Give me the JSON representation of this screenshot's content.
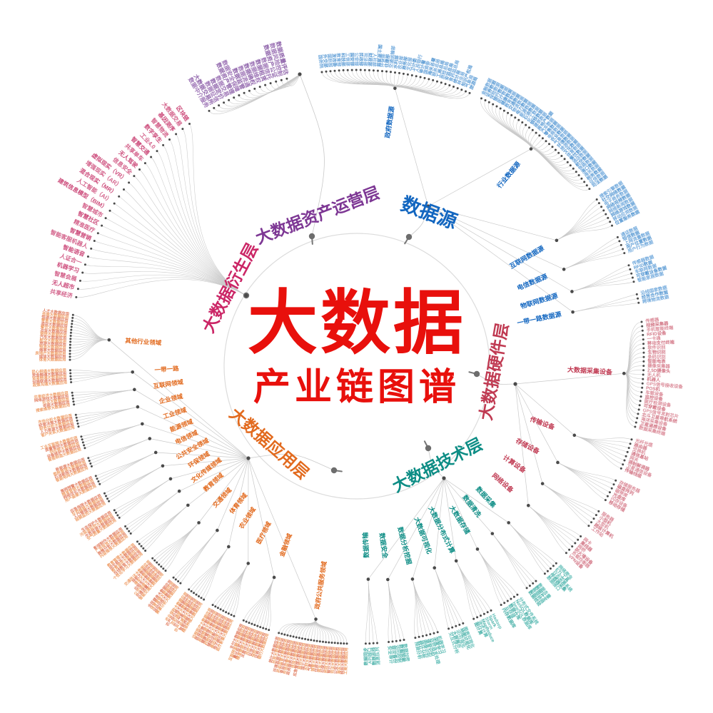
{
  "title": {
    "main": "大数据",
    "sub": "产业链图谱"
  },
  "colors": {
    "center_red": "#e8100c",
    "curve_gray": "#c9c9c9",
    "dot_gray": "#4a4a4a",
    "ring_gray": "#dcdcdc"
  },
  "branches": [
    {
      "id": "data-source",
      "label": "数据源",
      "color": "#1266c0",
      "leaf_colors": [
        "#74abdd",
        "#5b9bd4"
      ],
      "subs": [
        {
          "label": "政府数据源",
          "leaves": [
            "国务院",
            "外交部",
            "国防部",
            "发改委",
            "教育部",
            "科技部",
            "工信部",
            "国安部",
            "公安部",
            "民政部",
            "司法部",
            "财政部",
            "人社部",
            "国土资源部",
            "环保部",
            "住建部",
            "交通运输部",
            "水利部",
            "农业部",
            "商务部",
            "文化部",
            "卫计委",
            "人民银行",
            "审计署",
            "国资委",
            "海关总署",
            "税务总局",
            "工商总局",
            "质检总局",
            "安监总局",
            "食药监总局",
            "统计局",
            "林业局",
            "知识产权局",
            "气象局",
            "旅游局"
          ]
        },
        {
          "label": "行业数据源",
          "leaves": [
            "金融数据",
            "证券数据",
            "保险数据",
            "银行数据",
            "医疗数据",
            "健康数据",
            "教育数据",
            "交通数据",
            "物流数据",
            "电力数据",
            "能源数据",
            "石油数据",
            "化工数据",
            "钢铁数据",
            "建筑数据",
            "房地产数据",
            "汽车数据",
            "零售数据",
            "电商数据",
            "农业数据",
            "气象数据",
            "环境数据",
            "旅游数据",
            "文化数据",
            "体育数据",
            "餐饮数据",
            "酒店数据",
            "航空数据",
            "铁路数据",
            "港口数据",
            "海关数据",
            "税务数据",
            "征信数据",
            "司法数据"
          ]
        },
        {
          "label": "互联网数据源",
          "leaves": [
            "搜索引擎数据",
            "社交网络数据",
            "电子商务数据",
            "网络视频数据",
            "网络新闻数据",
            "网络游戏数据",
            "移动应用数据",
            "位置服务数据"
          ]
        },
        {
          "label": "电信数据源",
          "leaves": [
            "通话数据",
            "短信数据",
            "上网流量数据",
            "用户位置数据",
            "用户行为数据"
          ]
        },
        {
          "label": "物联网数据源",
          "leaves": [
            "传感器数据",
            "RFID数据",
            "车联网数据",
            "可穿戴设备数据",
            "智能家居数据"
          ]
        },
        {
          "label": "一带一路数据源",
          "leaves": [
            "沿线国家数据",
            "经贸合作数据",
            "跨境物流数据"
          ]
        }
      ]
    },
    {
      "id": "hardware",
      "label": "大数据硬件层",
      "color": "#c03a52",
      "leaf_colors": [
        "#dc8e9b",
        "#d47a89"
      ],
      "subs": [
        {
          "label": "大数据采集设备",
          "leaves": [
            "传感器",
            "视频采集器",
            "手机智能终端",
            "RFID设备",
            "一卡通",
            "移动支付终端",
            "软件识别",
            "生物识别",
            "条码识别",
            "智能电表",
            "摄像采集器",
            "2.5D摄像头",
            "无人机",
            "机器人",
            "GPS信号接收设备",
            "POS机",
            "车载设备",
            "监控设备",
            "医疗检测设备",
            "可穿戴设备",
            "GPS信号发射芯片",
            "北斗卫星导航系统",
            "海洋采集设备",
            "卫星遥感设备",
            "数据采集终端"
          ]
        },
        {
          "label": "传输设备",
          "leaves": [
            "光纤光缆",
            "路由器",
            "交换机",
            "通信基站",
            "网关",
            "调制解调器",
            "卫星通信设备",
            "传输线缆"
          ]
        },
        {
          "label": "存储设备",
          "leaves": [
            "存储服务器",
            "磁盘阵列",
            "磁带库",
            "光盘库",
            "闪存设备",
            "移动存储"
          ]
        },
        {
          "label": "计算设备",
          "leaves": [
            "服务器",
            "小型机",
            "大型机",
            "超级计算机",
            "工作站"
          ]
        },
        {
          "label": "网络设备",
          "leaves": [
            "网卡",
            "集线器",
            "网桥",
            "防火墙设备",
            "负载均衡器",
            "VPN设备"
          ]
        }
      ]
    },
    {
      "id": "technology",
      "label": "大数据技术层",
      "color": "#0d8d85",
      "leaf_colors": [
        "#63bfb8",
        "#4fb3ab"
      ],
      "subs": [
        {
          "label": "数据采集",
          "leaves": [
            "网络爬虫",
            "ETL工具",
            "日志采集系统",
            "传感器采集",
            "数据接口"
          ]
        },
        {
          "label": "数据清洗",
          "leaves": [
            "数据去重",
            "数据补全",
            "数据转换",
            "数据校验"
          ]
        },
        {
          "label": "大数据存储",
          "leaves": [
            "分布式文件系统",
            "NoSQL数据库",
            "NewSQL数据库",
            "数据仓库",
            "云存储",
            "内存数据库"
          ]
        },
        {
          "label": "大数据分布式计算",
          "leaves": [
            "Hadoop",
            "Spark",
            "Storm",
            "MapReduce",
            "流式计算",
            "图计算"
          ]
        },
        {
          "label": "大数据可视化",
          "leaves": [
            "图表可视化",
            "地图可视化",
            "3D可视化",
            "大屏展示",
            "交互式分析"
          ]
        },
        {
          "label": "数据分析挖掘",
          "leaves": [
            "机器学习",
            "深度学习",
            "自然语言处理",
            "语音识别",
            "图像识别",
            "统计分析",
            "预测分析"
          ]
        },
        {
          "label": "数据安全",
          "leaves": [
            "数据加密",
            "数据脱敏",
            "访问控制",
            "容灾备份",
            "安全审计"
          ]
        },
        {
          "label": "数据传输",
          "leaves": [
            "消息队列",
            "数据总线",
            "API接口",
            "数据同步"
          ]
        }
      ]
    },
    {
      "id": "application",
      "label": "大数据应用层",
      "color": "#e26a1e",
      "leaf_colors": [
        "#efa06b",
        "#e28266"
      ],
      "subs": [
        {
          "label": "政府公共服务领域",
          "leaves": [
            "工商大数据应用",
            "税务大数据应用",
            "海关大数据应用",
            "公安大数据应用",
            "司法大数据应用",
            "审计大数据应用",
            "民政大数据应用",
            "社保大数据应用",
            "就业大数据应用",
            "住房大数据应用",
            "城管大数据应用",
            "气象大数据应用",
            "水利大数据应用",
            "国土大数据应用",
            "规划大数据应用",
            "应急管理大数据应用",
            "信用大数据应用",
            "政务服务大数据应用",
            "市场监管大数据应用",
            "食品安全大数据应用",
            "药品监管大数据应用",
            "环境监测大数据应用",
            "扶贫大数据应用",
            "统计大数据应用"
          ]
        },
        {
          "label": "金融领域",
          "leaves": [
            "银行大数据应用",
            "证券大数据应用",
            "保险大数据应用",
            "征信大数据应用",
            "风控大数据应用",
            "反欺诈大数据应用",
            "精准营销大数据应用",
            "量化投资大数据应用",
            "互联网金融大数据应用",
            "支付大数据应用"
          ]
        },
        {
          "label": "医疗领域",
          "leaves": [
            "医疗影像大数据应用",
            "电子病历大数据应用",
            "基因测序大数据应用",
            "辅助诊断大数据应用",
            "药物研发大数据应用",
            "健康管理大数据应用",
            "疾病预测大数据应用",
            "医保控费大数据应用",
            "远程医疗大数据应用"
          ]
        },
        {
          "label": "农业领域",
          "leaves": [
            "精准种植大数据应用",
            "智能养殖大数据应用",
            "农产品溯源大数据应用",
            "农业气象大数据应用",
            "农机调度大数据应用",
            "农产品价格大数据应用",
            "农业保险大数据应用"
          ]
        },
        {
          "label": "体育领域",
          "leaves": [
            "赛事分析大数据应用",
            "运动训练大数据应用",
            "体育营销大数据应用",
            "全民健身大数据应用"
          ]
        },
        {
          "label": "交通领域",
          "leaves": [
            "智能交通大数据应用",
            "交通流量大数据应用",
            "公交调度大数据应用",
            "出租车大数据应用",
            "停车大数据应用",
            "导航大数据应用",
            "交通执法大数据应用"
          ]
        },
        {
          "label": "教育领域",
          "leaves": [
            "个性化学习大数据应用",
            "在线教育大数据应用",
            "教育测评大数据应用",
            "招生就业大数据应用",
            "教育管理大数据应用"
          ]
        },
        {
          "label": "文化传媒领域",
          "leaves": [
            "内容推荐大数据应用",
            "舆情分析大数据应用",
            "广告投放大数据应用",
            "影视制作大数据应用"
          ]
        },
        {
          "label": "环保领域",
          "leaves": [
            "空气质量大数据应用",
            "水质监测大数据应用",
            "污染源监控大数据应用",
            "生态保护大数据应用"
          ]
        },
        {
          "label": "公共安全领域",
          "leaves": [
            "视频监控大数据应用",
            "人口管理大数据应用",
            "反恐维稳大数据应用",
            "应急指挥大数据应用"
          ]
        },
        {
          "label": "电信领域",
          "leaves": [
            "用户画像大数据应用",
            "网络优化大数据应用",
            "精准营销大数据应用",
            "离网预警大数据应用"
          ]
        },
        {
          "label": "能源领域",
          "leaves": [
            "智能电网大数据应用",
            "石油勘探大数据应用",
            "能耗管理大数据应用",
            "新能源大数据应用"
          ]
        },
        {
          "label": "工业领域",
          "leaves": [
            "智能制造大数据应用",
            "设备维护大数据应用",
            "供应链大数据应用",
            "质量管控大数据应用",
            "工业互联网大数据应用"
          ]
        },
        {
          "label": "企业领域",
          "leaves": [
            "客户关系大数据应用",
            "人力资源大数据应用",
            "财务分析大数据应用",
            "经营决策大数据应用",
            "市场分析大数据应用"
          ]
        },
        {
          "label": "互联网领域",
          "leaves": [
            "搜索推荐大数据应用",
            "电商大数据应用",
            "社交大数据应用",
            "网络游戏大数据应用",
            "共享经济大数据应用"
          ]
        },
        {
          "label": "一带一路",
          "leaves": [
            "政策沟通大数据应用",
            "设施联通大数据应用",
            "贸易畅通大数据应用",
            "资金融通大数据应用",
            "民心相通大数据应用"
          ]
        },
        {
          "label": "其他行业领域",
          "leaves": [
            "体育大数据应用",
            "媒体大数据应用",
            "房地产大数据应用",
            "烟草大数据应用",
            "物流大数据应用",
            "旅游大数据应用",
            "航空大数据应用",
            "汽车大数据应用",
            "钢铁大数据应用",
            "冶金大数据应用",
            "餐饮大数据应用",
            "酒店大数据应用",
            "零售大数据应用",
            "快递大数据应用",
            "会展大数据应用",
            "人才大数据应用"
          ]
        }
      ]
    },
    {
      "id": "derivative",
      "label": "大数据衍生层",
      "color": "#cb2666",
      "leaf_colors": [
        "#d4648c",
        "#cd4d7c"
      ],
      "subs": [
        {
          "label": "",
          "leaves": [
            "共享经济",
            "无人超市",
            "智慧会展",
            "机器学习",
            "人证合一",
            "智能语音",
            "智能客服机器人",
            "智慧营销",
            "精准医疗",
            "智慧社区",
            "智慧城市",
            "建筑信息模型（BIM）",
            "人工智能（AI）",
            "混合现实（MR）",
            "增强现实（AR）",
            "虚拟现实（VR）",
            "信息安全",
            "无人驾驶",
            "共享单车",
            "智慧交通",
            "工业4.0",
            "数字孪生",
            "智慧物流",
            "基因测序",
            "大数据交易",
            "区块链"
          ]
        }
      ]
    },
    {
      "id": "asset-operation",
      "label": "大数据资产运营层",
      "color": "#7d3794",
      "leaf_colors": [
        "#a078b8",
        "#9268ad"
      ],
      "subs": [
        {
          "label": "",
          "leaves": [
            "数据中介服务",
            "大数据交易所",
            "数据征信",
            "数据定价",
            "数据交易",
            "数据资产管理",
            "数据安全保障",
            "数据监管",
            "数据流通",
            "数据确权",
            "数据维权",
            "数据租赁",
            "数据信托",
            "数据资产公证",
            "数据风险控制",
            "数据质量评估"
          ]
        }
      ]
    }
  ]
}
